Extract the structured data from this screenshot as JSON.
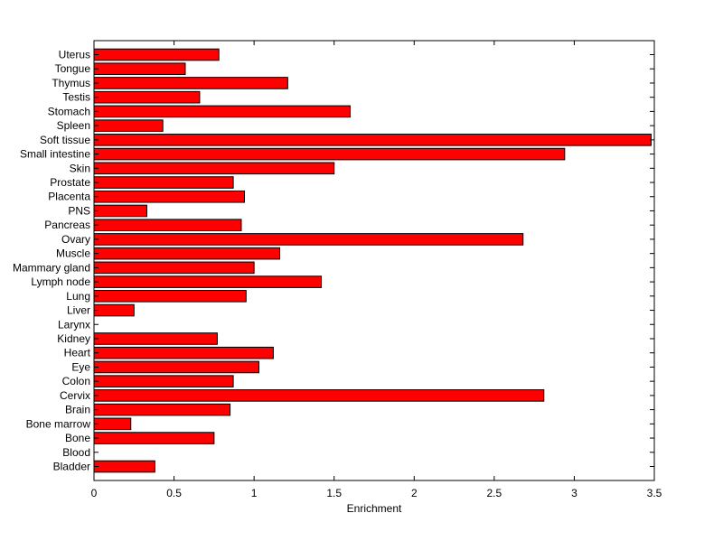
{
  "chart_data": {
    "type": "bar",
    "orientation": "horizontal",
    "xlabel": "Enrichment",
    "ylabel": "",
    "xlim": [
      0,
      3.5
    ],
    "xticks": [
      0,
      0.5,
      1,
      1.5,
      2,
      2.5,
      3,
      3.5
    ],
    "xtick_labels": [
      "0",
      "0.5",
      "1",
      "1.5",
      "2",
      "2.5",
      "3",
      "3.5"
    ],
    "grid": false,
    "bar_color": "#ff0000",
    "bar_edge_color": "#000000",
    "categories": [
      "Uterus",
      "Tongue",
      "Thymus",
      "Testis",
      "Stomach",
      "Spleen",
      "Soft tissue",
      "Small intestine",
      "Skin",
      "Prostate",
      "Placenta",
      "PNS",
      "Pancreas",
      "Ovary",
      "Muscle",
      "Mammary gland",
      "Lymph node",
      "Lung",
      "Liver",
      "Larynx",
      "Kidney",
      "Heart",
      "Eye",
      "Colon",
      "Cervix",
      "Brain",
      "Bone marrow",
      "Bone",
      "Blood",
      "Bladder"
    ],
    "values": [
      0.78,
      0.57,
      1.21,
      0.66,
      1.6,
      0.43,
      3.48,
      2.94,
      1.5,
      0.87,
      0.94,
      0.33,
      0.92,
      2.68,
      1.16,
      1.0,
      1.42,
      0.95,
      0.25,
      0.0,
      0.77,
      1.12,
      1.03,
      0.87,
      2.81,
      0.85,
      0.23,
      0.75,
      0.0,
      0.38
    ]
  }
}
